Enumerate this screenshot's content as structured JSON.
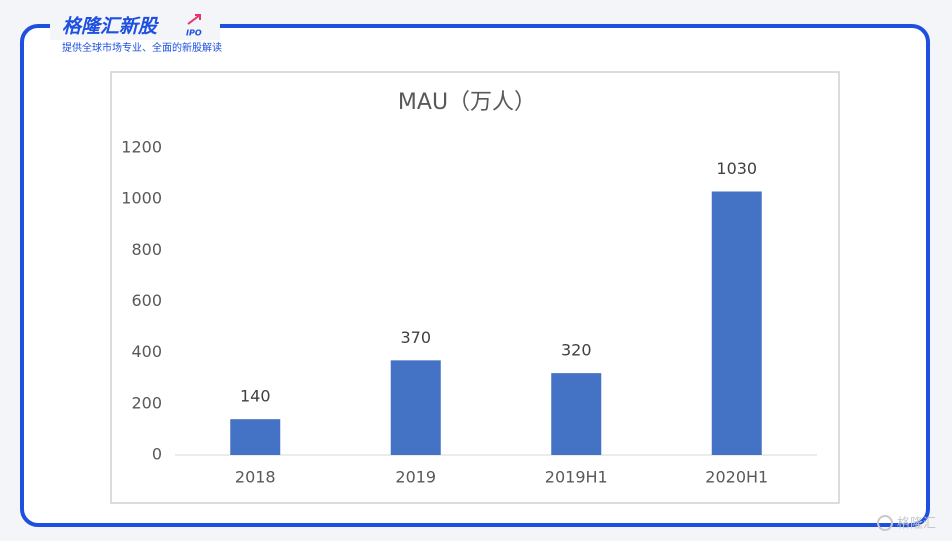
{
  "header": {
    "logo": "格隆汇新股",
    "logo_sub": "IPO",
    "tagline": "提供全球市场专业、全面的新股解读"
  },
  "watermark": "格隆汇",
  "chart_data": {
    "type": "bar",
    "title": "MAU（万人）",
    "categories": [
      "2018",
      "2019",
      "2019H1",
      "2020H1"
    ],
    "values": [
      140,
      370,
      320,
      1030
    ],
    "color": "#4472c4",
    "ylim": [
      0,
      1200
    ],
    "yticks": [
      0,
      200,
      400,
      600,
      800,
      1000,
      1200
    ],
    "grid": false
  }
}
